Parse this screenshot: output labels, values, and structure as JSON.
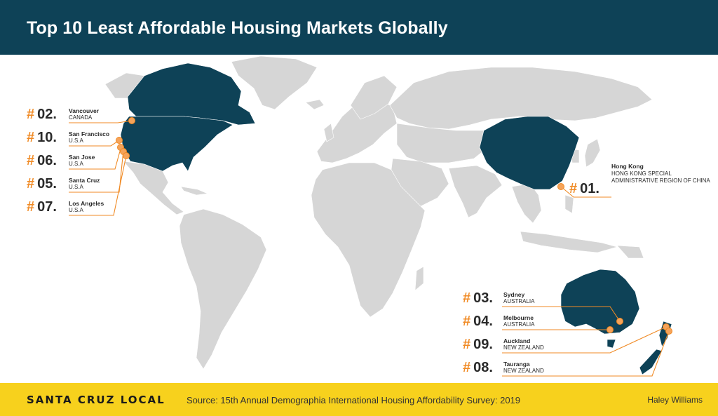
{
  "title": "Top 10 Least Affordable Housing Markets Globally",
  "footer": {
    "brand": "SANTA CRUZ LOCAL",
    "source": "Source: 15th Annual Demographia International Housing Affordability Survey: 2019",
    "author": "Haley Williams"
  },
  "colors": {
    "header": "#0e4257",
    "highlight": "#0e4257",
    "land": "#d6d6d6",
    "accent": "#f08a24",
    "footer": "#f7d11d"
  },
  "markets": {
    "vancouver": {
      "hash": "#",
      "rank": "02.",
      "city": "Vancouver",
      "country": "CANADA"
    },
    "sanfrancisco": {
      "hash": "#",
      "rank": "10.",
      "city": "San Francisco",
      "country": "U.S.A"
    },
    "sanjose": {
      "hash": "#",
      "rank": "06.",
      "city": "San Jose",
      "country": "U.S.A"
    },
    "santacruz": {
      "hash": "#",
      "rank": "05.",
      "city": "Santa Cruz",
      "country": "U.S.A"
    },
    "losangeles": {
      "hash": "#",
      "rank": "07.",
      "city": "Los Angeles",
      "country": "U.S.A"
    },
    "hongkong": {
      "hash": "#",
      "rank": "01.",
      "city": "Hong Kong",
      "country": "HONG KONG SPECIAL ADMINISTRATIVE REGION OF CHINA"
    },
    "sydney": {
      "hash": "#",
      "rank": "03.",
      "city": "Sydney",
      "country": "AUSTRALIA"
    },
    "melbourne": {
      "hash": "#",
      "rank": "04.",
      "city": "Melbourne",
      "country": "AUSTRALIA"
    },
    "auckland": {
      "hash": "#",
      "rank": "09.",
      "city": "Auckland",
      "country": "NEW ZEALAND"
    },
    "tauranga": {
      "hash": "#",
      "rank": "08.",
      "city": "Tauranga",
      "country": "NEW ZEALAND"
    }
  }
}
